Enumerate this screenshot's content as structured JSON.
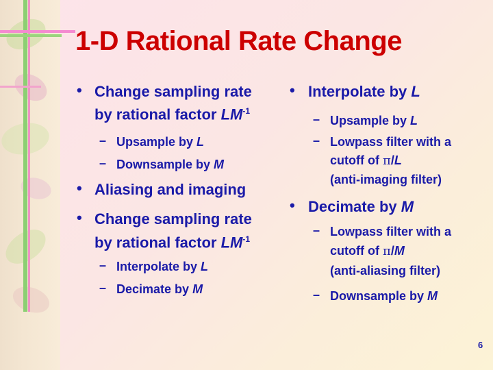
{
  "slide": {
    "title": "1-D Rational Rate Change",
    "page_number": "6",
    "left": {
      "b1_line1": "Change sampling rate",
      "b1_line2_prefix": "by rational factor ",
      "b1_factor_L": "L",
      "b1_factor_M": "M",
      "b1_exp": "-1",
      "b1_sub1_prefix": "Upsample by ",
      "b1_sub1_var": "L",
      "b1_sub2_prefix": "Downsample by ",
      "b1_sub2_var": "M",
      "b2": "Aliasing and imaging",
      "b3_line1": "Change sampling rate",
      "b3_line2_prefix": "by rational factor ",
      "b3_factor_L": "L",
      "b3_factor_M": "M",
      "b3_exp": "-1",
      "b3_sub1_prefix": "Interpolate by ",
      "b3_sub1_var": "L",
      "b3_sub2_prefix": "Decimate by ",
      "b3_sub2_var": "M"
    },
    "right": {
      "b1_prefix": "Interpolate by ",
      "b1_var": "L",
      "s1_prefix": "Upsample by ",
      "s1_var": "L",
      "s2_line1": "Lowpass filter with a",
      "s2_line2_prefix": "cutoff of ",
      "s2_pi": "π",
      "s2_slash": "/",
      "s2_var": "L",
      "s2_line3": "(anti-imaging filter)",
      "b2_prefix": "Decimate by ",
      "b2_var": "M",
      "s3_line1": "Lowpass filter with a",
      "s3_line2_prefix": "cutoff of ",
      "s3_pi": "π",
      "s3_slash": "/",
      "s3_var": "M",
      "s3_line3": "(anti-aliasing filter)",
      "s4_prefix": "Downsample by ",
      "s4_var": "M"
    },
    "bullet_char": "•",
    "dash_char": "–"
  }
}
